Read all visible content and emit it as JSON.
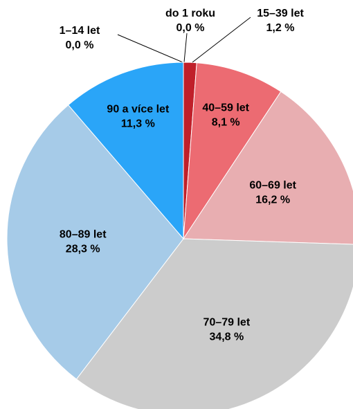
{
  "chart_data": {
    "type": "pie",
    "categories": [
      "do 1 roku",
      "1–14 let",
      "15–39 let",
      "40–59 let",
      "60–69 let",
      "70–79 let",
      "80–89 let",
      "90 a více let"
    ],
    "values": [
      0.0,
      0.0,
      1.2,
      8.1,
      16.2,
      34.8,
      28.3,
      11.3
    ],
    "value_labels": [
      "0,0 %",
      "0,0 %",
      "1,2 %",
      "8,1 %",
      "16,2 %",
      "34,8 %",
      "28,3 %",
      "11,3 %"
    ],
    "colors": [
      "#7a1016",
      "#1f6fb5",
      "#c0202a",
      "#ec6b72",
      "#e8aeb1",
      "#cccccc",
      "#a6cbe8",
      "#2aa5f8"
    ]
  }
}
